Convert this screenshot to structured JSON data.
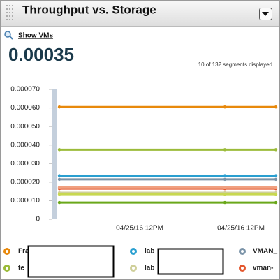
{
  "header": {
    "title": "Throughput vs. Storage"
  },
  "link": "Show VMs",
  "summary": {
    "value": "0.00035",
    "segments": "10 of 132 segments displayed"
  },
  "chart_data": {
    "type": "line",
    "categories": [
      null,
      null,
      null
    ],
    "xtick_labels": [
      "04/25/16 12PM",
      "04/25/16 12PM"
    ],
    "ylim": [
      0,
      7e-05
    ],
    "yticks": [
      0,
      {
        "value": 1e-05,
        "label": "0.000010"
      },
      {
        "value": 2e-05,
        "label": "0.000020"
      },
      {
        "value": 3e-05,
        "label": "0.000030"
      },
      {
        "value": 4e-05,
        "label": "0.000040"
      },
      {
        "value": 5e-05,
        "label": "0.000050"
      },
      {
        "value": 6e-05,
        "label": "0.000060"
      },
      {
        "value": 7e-05,
        "label": "0.000070"
      }
    ],
    "series": [
      {
        "name": "Fra",
        "color": "#e8890c",
        "values": [
          6.05e-05,
          6.05e-05,
          6.05e-05
        ]
      },
      {
        "name": "lab",
        "color": "#2a9fd0",
        "values": [
          2.35e-05,
          2.35e-05,
          2.35e-05
        ]
      },
      {
        "name": "VMAN_",
        "color": "#7a93a8",
        "values": [
          2.15e-05,
          2.15e-05,
          2.15e-05
        ]
      },
      {
        "name": "te",
        "color": "#9bbb3a",
        "values": [
          3.75e-05,
          3.75e-05,
          3.75e-05
        ]
      },
      {
        "name": "lab",
        "color": "#cfcf9a",
        "values": [
          1.43e-05,
          1.43e-05,
          1.43e-05
        ]
      },
      {
        "name": "vman-",
        "color": "#e4572e",
        "values": [
          1.65e-05,
          1.65e-05,
          1.65e-05
        ]
      },
      {
        "color": "#f0a080",
        "values": [
          1.72e-05,
          1.72e-05,
          1.72e-05
        ]
      },
      {
        "color": "#c8d850",
        "values": [
          1.35e-05,
          1.35e-05,
          1.35e-05
        ]
      },
      {
        "color": "#6aa81a",
        "values": [
          9e-06,
          9e-06,
          9e-06
        ]
      }
    ]
  }
}
